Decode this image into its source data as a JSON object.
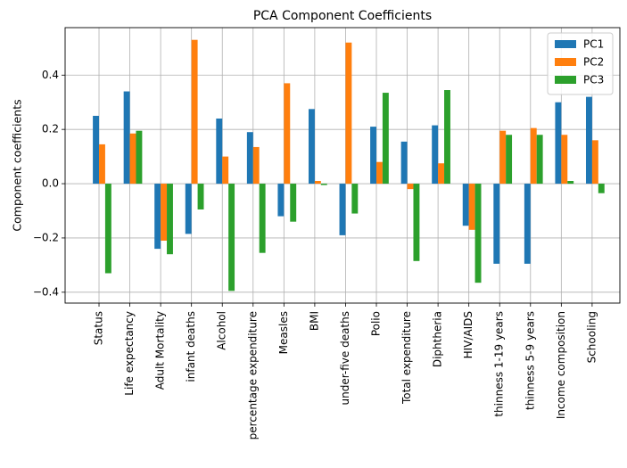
{
  "chart_data": {
    "type": "bar",
    "title": "PCA Component Coefficients",
    "xlabel": "",
    "ylabel": "Component coefficients",
    "ylim": [
      -0.44,
      0.575
    ],
    "yticks": [
      -0.4,
      -0.2,
      0.0,
      0.2,
      0.4
    ],
    "ytick_labels": [
      "−0.4",
      "−0.2",
      "0.0",
      "0.2",
      "0.4"
    ],
    "grid": true,
    "legend_position": "top-right",
    "categories": [
      "Status",
      "Life expectancy",
      "Adult Mortality",
      "infant deaths",
      "Alcohol",
      "percentage expenditure",
      "Measles",
      "BMI",
      "under-five deaths",
      "Polio",
      "Total expenditure",
      "Diphtheria",
      "HIV/AIDS",
      "thinness  1-19 years",
      "thinness 5-9 years",
      "Income composition",
      "Schooling"
    ],
    "series": [
      {
        "name": "PC1",
        "color": "#1f77b4",
        "values": [
          0.25,
          0.34,
          -0.24,
          -0.185,
          0.24,
          0.19,
          -0.12,
          0.275,
          -0.19,
          0.21,
          0.155,
          0.215,
          -0.155,
          -0.295,
          -0.295,
          0.3,
          0.32
        ]
      },
      {
        "name": "PC2",
        "color": "#ff7f0e",
        "values": [
          0.145,
          0.185,
          -0.21,
          0.53,
          0.1,
          0.135,
          0.37,
          0.01,
          0.52,
          0.08,
          -0.02,
          0.075,
          -0.17,
          0.195,
          0.205,
          0.18,
          0.16
        ]
      },
      {
        "name": "PC3",
        "color": "#2ca02c",
        "values": [
          -0.33,
          0.195,
          -0.26,
          -0.095,
          -0.395,
          -0.255,
          -0.14,
          -0.005,
          -0.11,
          0.335,
          -0.285,
          0.345,
          -0.365,
          0.18,
          0.18,
          0.01,
          -0.035
        ]
      }
    ]
  }
}
